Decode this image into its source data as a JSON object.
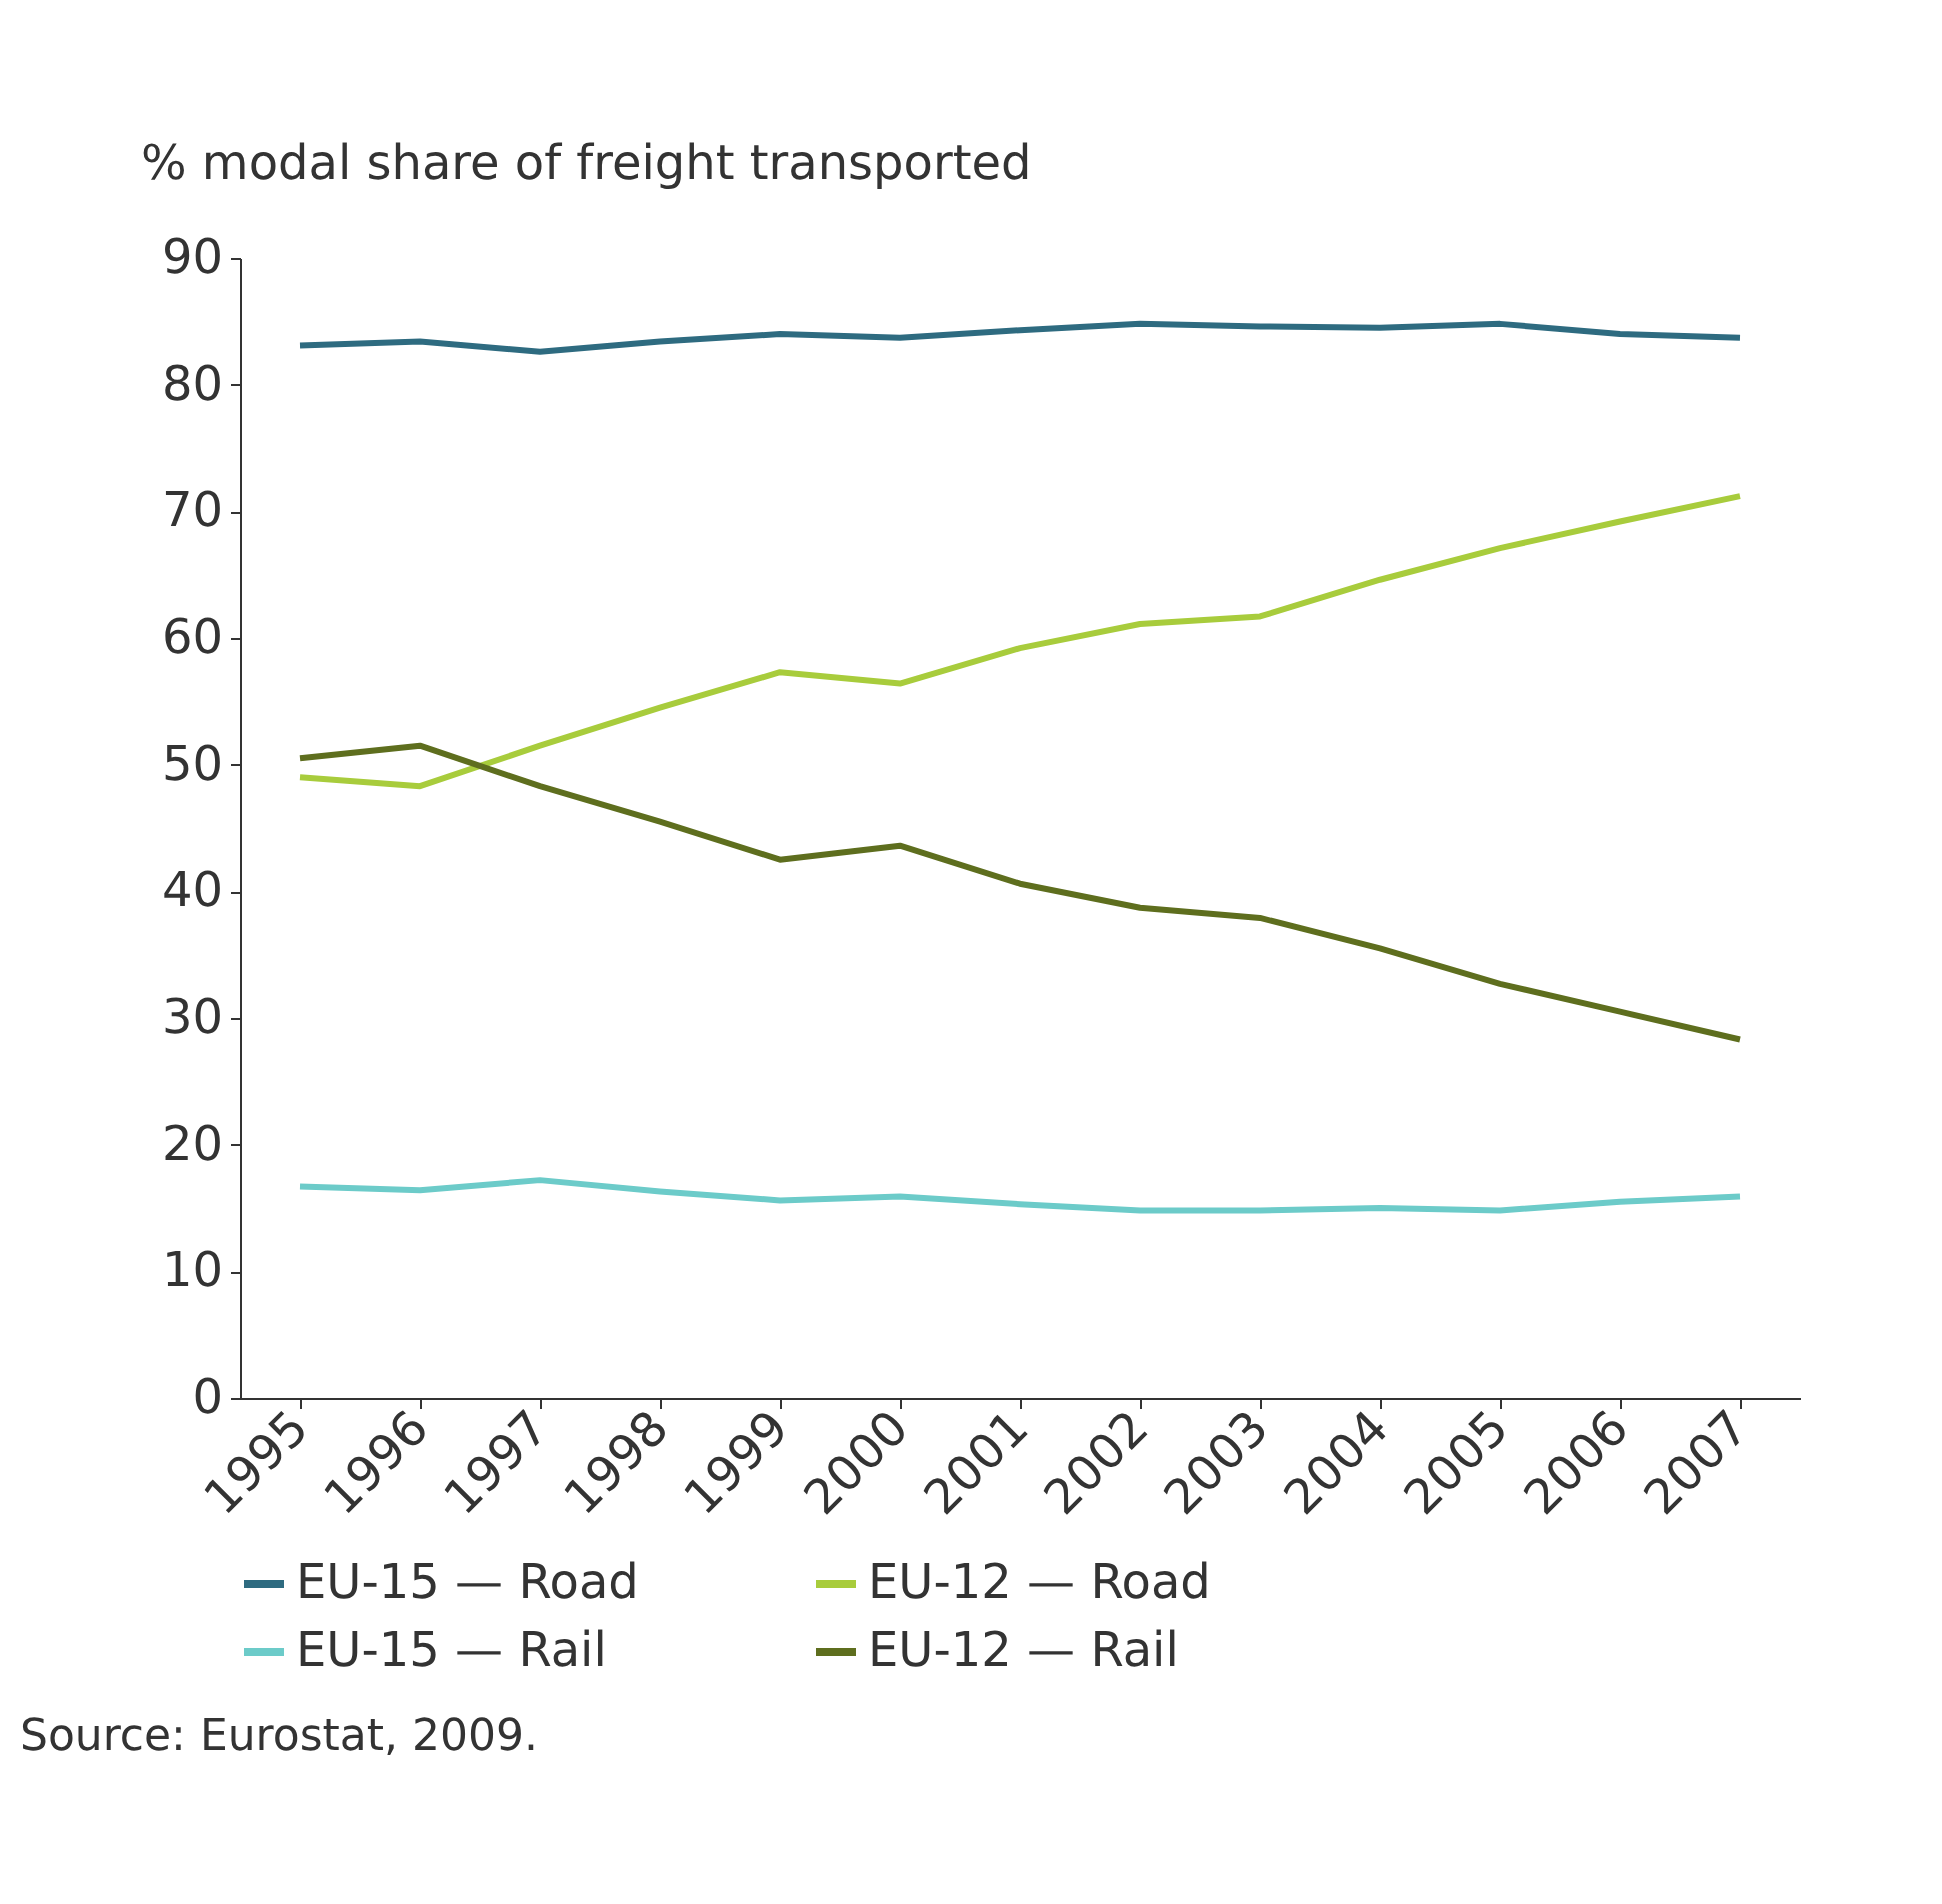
{
  "chart_data": {
    "type": "line",
    "ylabel": "% modal share of freight transported",
    "categories": [
      "1995",
      "1996",
      "1997",
      "1998",
      "1999",
      "2000",
      "2001",
      "2002",
      "2003",
      "2004",
      "2005",
      "2006",
      "2007"
    ],
    "series": [
      {
        "name": "EU-15 — Road",
        "color": "#2e6b80",
        "values": [
          83.1,
          83.4,
          82.6,
          83.4,
          84.0,
          83.7,
          84.3,
          84.8,
          84.6,
          84.5,
          84.8,
          84.0,
          83.7
        ]
      },
      {
        "name": "EU-12 — Road",
        "color": "#a8cc3c",
        "values": [
          49.0,
          48.3,
          51.5,
          54.5,
          57.3,
          56.4,
          59.2,
          61.1,
          61.7,
          64.6,
          67.1,
          69.2,
          71.2
        ]
      },
      {
        "name": "EU-15 — Rail",
        "color": "#6ccbc9",
        "values": [
          16.7,
          16.4,
          17.2,
          16.3,
          15.6,
          15.9,
          15.3,
          14.8,
          14.8,
          15.0,
          14.8,
          15.5,
          15.9
        ]
      },
      {
        "name": "EU-12 — Rail",
        "color": "#5e6e1e",
        "values": [
          50.5,
          51.5,
          48.3,
          45.5,
          42.5,
          43.6,
          40.6,
          38.7,
          37.9,
          35.5,
          32.7,
          30.5,
          28.3
        ]
      }
    ],
    "ylim": [
      0,
      90
    ],
    "yticks": [
      0,
      10,
      20,
      30,
      40,
      50,
      60,
      70,
      80,
      90
    ],
    "grid": false,
    "legend": "bottom",
    "marker": "none",
    "line_style": "solid",
    "annotations": [
      "Source: Eurostat, 2009."
    ]
  }
}
